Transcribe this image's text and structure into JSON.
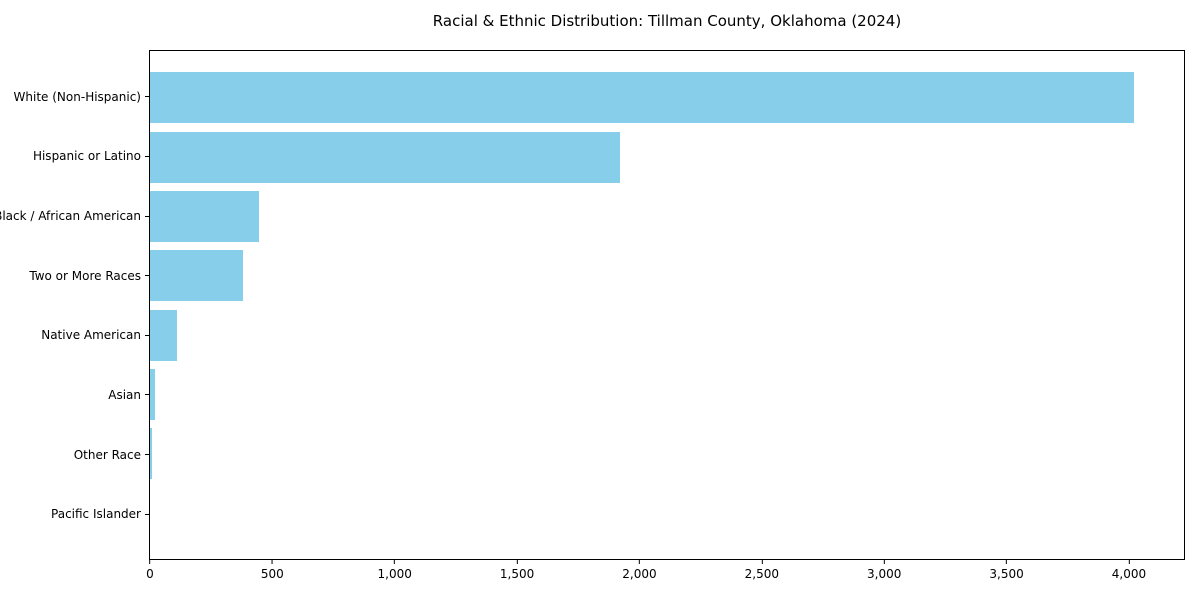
{
  "chart_data": {
    "type": "bar",
    "orientation": "horizontal",
    "title": "Racial & Ethnic Distribution: Tillman County, Oklahoma (2024)",
    "categories": [
      "White (Non-Hispanic)",
      "Hispanic or Latino",
      "Black / African American",
      "Two or More Races",
      "Native American",
      "Asian",
      "Other Race",
      "Pacific Islander"
    ],
    "values": [
      4020,
      1920,
      445,
      380,
      110,
      20,
      10,
      0
    ],
    "xlabel": "",
    "ylabel": "",
    "xlim": [
      0,
      4225
    ],
    "xticks": [
      0,
      500,
      1000,
      1500,
      2000,
      2500,
      3000,
      3500,
      4000
    ],
    "xtick_labels": [
      "0",
      "500",
      "1,000",
      "1,500",
      "2,000",
      "2,500",
      "3,000",
      "3,500",
      "4,000"
    ],
    "bar_color": "#87CEEB",
    "axis_color": "#000000",
    "background_color": "#ffffff",
    "grid": false,
    "legend": null
  }
}
